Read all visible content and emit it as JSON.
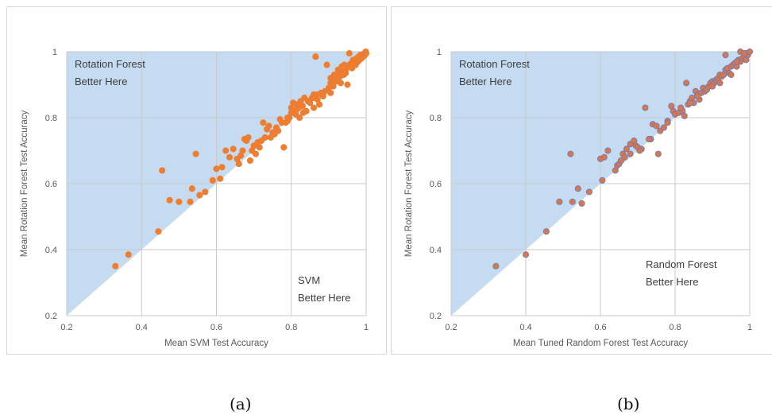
{
  "chart_data": [
    {
      "type": "scatter",
      "caption": "(a)",
      "xlabel": "Mean SVM  Test Accuracy",
      "ylabel": "Mean Rotation Forest Test Accuracy",
      "xlim": [
        0.2,
        1.0
      ],
      "ylim": [
        0.2,
        1.0
      ],
      "xticks": [
        "0.2",
        "0.4",
        "0.6",
        "0.8",
        "1"
      ],
      "yticks": [
        "0.2",
        "0.4",
        "0.6",
        "0.8",
        "1"
      ],
      "grid": true,
      "shaded_region": "above diagonal y = x",
      "colors": {
        "shade": "#c4dbf1",
        "point": "#ed7d31",
        "point_edge": "#ed7d31",
        "grid": "#c9c9c9"
      },
      "annotations": [
        {
          "lines": [
            "Rotation Forest",
            "Better Here"
          ],
          "region": "top-left"
        },
        {
          "lines": [
            "SVM",
            "Better Here"
          ],
          "region": "bottom-right"
        }
      ],
      "points": [
        [
          0.33,
          0.35
        ],
        [
          0.365,
          0.385
        ],
        [
          0.445,
          0.455
        ],
        [
          0.455,
          0.64
        ],
        [
          0.475,
          0.55
        ],
        [
          0.5,
          0.545
        ],
        [
          0.53,
          0.545
        ],
        [
          0.535,
          0.585
        ],
        [
          0.545,
          0.69
        ],
        [
          0.555,
          0.565
        ],
        [
          0.57,
          0.575
        ],
        [
          0.59,
          0.61
        ],
        [
          0.6,
          0.645
        ],
        [
          0.61,
          0.615
        ],
        [
          0.615,
          0.65
        ],
        [
          0.625,
          0.7
        ],
        [
          0.635,
          0.68
        ],
        [
          0.645,
          0.705
        ],
        [
          0.655,
          0.675
        ],
        [
          0.66,
          0.66
        ],
        [
          0.665,
          0.685
        ],
        [
          0.67,
          0.7
        ],
        [
          0.675,
          0.735
        ],
        [
          0.68,
          0.73
        ],
        [
          0.685,
          0.74
        ],
        [
          0.69,
          0.67
        ],
        [
          0.695,
          0.7
        ],
        [
          0.7,
          0.715
        ],
        [
          0.705,
          0.69
        ],
        [
          0.71,
          0.725
        ],
        [
          0.715,
          0.71
        ],
        [
          0.72,
          0.73
        ],
        [
          0.725,
          0.785
        ],
        [
          0.73,
          0.74
        ],
        [
          0.735,
          0.765
        ],
        [
          0.74,
          0.775
        ],
        [
          0.745,
          0.74
        ],
        [
          0.75,
          0.755
        ],
        [
          0.755,
          0.75
        ],
        [
          0.76,
          0.77
        ],
        [
          0.765,
          0.76
        ],
        [
          0.77,
          0.795
        ],
        [
          0.775,
          0.785
        ],
        [
          0.78,
          0.71
        ],
        [
          0.785,
          0.785
        ],
        [
          0.79,
          0.79
        ],
        [
          0.795,
          0.8
        ],
        [
          0.8,
          0.83
        ],
        [
          0.805,
          0.845
        ],
        [
          0.81,
          0.82
        ],
        [
          0.812,
          0.81
        ],
        [
          0.815,
          0.84
        ],
        [
          0.82,
          0.83
        ],
        [
          0.822,
          0.8
        ],
        [
          0.825,
          0.85
        ],
        [
          0.83,
          0.835
        ],
        [
          0.832,
          0.815
        ],
        [
          0.835,
          0.86
        ],
        [
          0.84,
          0.82
        ],
        [
          0.845,
          0.85
        ],
        [
          0.85,
          0.845
        ],
        [
          0.855,
          0.86
        ],
        [
          0.86,
          0.83
        ],
        [
          0.862,
          0.86
        ],
        [
          0.865,
          0.985
        ],
        [
          0.87,
          0.87
        ],
        [
          0.875,
          0.84
        ],
        [
          0.88,
          0.875
        ],
        [
          0.885,
          0.865
        ],
        [
          0.89,
          0.88
        ],
        [
          0.895,
          0.96
        ],
        [
          0.9,
          0.89
        ],
        [
          0.905,
          0.905
        ],
        [
          0.91,
          0.915
        ],
        [
          0.912,
          0.895
        ],
        [
          0.915,
          0.92
        ],
        [
          0.92,
          0.91
        ],
        [
          0.922,
          0.93
        ],
        [
          0.925,
          0.945
        ],
        [
          0.93,
          0.925
        ],
        [
          0.932,
          0.905
        ],
        [
          0.935,
          0.94
        ],
        [
          0.94,
          0.93
        ],
        [
          0.942,
          0.96
        ],
        [
          0.945,
          0.945
        ],
        [
          0.95,
          0.9
        ],
        [
          0.952,
          0.955
        ],
        [
          0.955,
          0.96
        ],
        [
          0.96,
          0.965
        ],
        [
          0.962,
          0.95
        ],
        [
          0.965,
          0.97
        ],
        [
          0.97,
          0.975
        ],
        [
          0.972,
          0.96
        ],
        [
          0.975,
          0.98
        ],
        [
          0.978,
          0.97
        ],
        [
          0.98,
          0.985
        ],
        [
          0.982,
          0.975
        ],
        [
          0.985,
          0.99
        ],
        [
          0.988,
          0.98
        ],
        [
          0.99,
          0.99
        ],
        [
          0.992,
          0.985
        ],
        [
          0.995,
          0.995
        ],
        [
          0.997,
          0.99
        ],
        [
          1.0,
          0.995
        ],
        [
          0.999,
          1.0
        ],
        [
          0.955,
          0.995
        ],
        [
          0.88,
          0.875
        ],
        [
          0.86,
          0.87
        ],
        [
          0.87,
          0.855
        ],
        [
          0.905,
          0.92
        ],
        [
          0.935,
          0.955
        ],
        [
          0.925,
          0.915
        ],
        [
          0.8,
          0.815
        ],
        [
          0.79,
          0.8
        ],
        [
          0.815,
          0.825
        ],
        [
          0.905,
          0.875
        ],
        [
          0.915,
          0.93
        ],
        [
          0.945,
          0.935
        ],
        [
          0.965,
          0.975
        ]
      ]
    },
    {
      "type": "scatter",
      "caption": "(b)",
      "xlabel": "Mean Tuned  Random Forest Test Accuracy",
      "ylabel": "Mean Rotation Forest Test Accuracy",
      "xlim": [
        0.2,
        1.0
      ],
      "ylim": [
        0.2,
        1.0
      ],
      "xticks": [
        "0.2",
        "0.4",
        "0.6",
        "0.8",
        "1"
      ],
      "yticks": [
        "0.2",
        "0.4",
        "0.6",
        "0.8",
        "1"
      ],
      "grid": true,
      "shaded_region": "above diagonal y = x",
      "colors": {
        "shade": "#c4dbf1",
        "point": "#d9764a",
        "point_edge": "#6f7bb8",
        "grid": "#c9c9c9"
      },
      "annotations": [
        {
          "lines": [
            "Rotation Forest",
            "Better Here"
          ],
          "region": "top-left"
        },
        {
          "lines": [
            "Random Forest",
            "Better Here"
          ],
          "region": "bottom-right"
        }
      ],
      "points": [
        [
          0.32,
          0.35
        ],
        [
          0.4,
          0.385
        ],
        [
          0.455,
          0.455
        ],
        [
          0.49,
          0.545
        ],
        [
          0.52,
          0.69
        ],
        [
          0.525,
          0.545
        ],
        [
          0.54,
          0.585
        ],
        [
          0.55,
          0.54
        ],
        [
          0.57,
          0.575
        ],
        [
          0.6,
          0.675
        ],
        [
          0.605,
          0.61
        ],
        [
          0.61,
          0.68
        ],
        [
          0.62,
          0.7
        ],
        [
          0.64,
          0.64
        ],
        [
          0.645,
          0.655
        ],
        [
          0.65,
          0.66
        ],
        [
          0.66,
          0.69
        ],
        [
          0.665,
          0.68
        ],
        [
          0.67,
          0.705
        ],
        [
          0.68,
          0.72
        ],
        [
          0.69,
          0.73
        ],
        [
          0.695,
          0.715
        ],
        [
          0.7,
          0.71
        ],
        [
          0.71,
          0.705
        ],
        [
          0.72,
          0.83
        ],
        [
          0.735,
          0.735
        ],
        [
          0.74,
          0.78
        ],
        [
          0.75,
          0.775
        ],
        [
          0.755,
          0.69
        ],
        [
          0.76,
          0.76
        ],
        [
          0.77,
          0.77
        ],
        [
          0.78,
          0.79
        ],
        [
          0.79,
          0.835
        ],
        [
          0.795,
          0.82
        ],
        [
          0.8,
          0.81
        ],
        [
          0.81,
          0.815
        ],
        [
          0.82,
          0.82
        ],
        [
          0.825,
          0.805
        ],
        [
          0.83,
          0.905
        ],
        [
          0.835,
          0.84
        ],
        [
          0.84,
          0.85
        ],
        [
          0.845,
          0.86
        ],
        [
          0.85,
          0.845
        ],
        [
          0.855,
          0.88
        ],
        [
          0.86,
          0.87
        ],
        [
          0.865,
          0.855
        ],
        [
          0.87,
          0.875
        ],
        [
          0.875,
          0.89
        ],
        [
          0.88,
          0.88
        ],
        [
          0.885,
          0.885
        ],
        [
          0.89,
          0.895
        ],
        [
          0.895,
          0.905
        ],
        [
          0.9,
          0.91
        ],
        [
          0.905,
          0.905
        ],
        [
          0.91,
          0.915
        ],
        [
          0.915,
          0.92
        ],
        [
          0.92,
          0.93
        ],
        [
          0.925,
          0.925
        ],
        [
          0.93,
          0.93
        ],
        [
          0.935,
          0.945
        ],
        [
          0.94,
          0.95
        ],
        [
          0.945,
          0.935
        ],
        [
          0.95,
          0.955
        ],
        [
          0.955,
          0.96
        ],
        [
          0.96,
          0.965
        ],
        [
          0.965,
          0.955
        ],
        [
          0.97,
          0.975
        ],
        [
          0.975,
          0.97
        ],
        [
          0.98,
          0.98
        ],
        [
          0.985,
          0.985
        ],
        [
          0.99,
          0.995
        ],
        [
          0.995,
          0.99
        ],
        [
          1.0,
          1.0
        ],
        [
          0.935,
          0.99
        ],
        [
          0.975,
          1.0
        ],
        [
          0.985,
          0.995
        ],
        [
          0.95,
          0.93
        ],
        [
          0.92,
          0.905
        ],
        [
          0.9,
          0.895
        ],
        [
          0.86,
          0.865
        ],
        [
          0.84,
          0.845
        ],
        [
          0.815,
          0.83
        ],
        [
          0.78,
          0.785
        ],
        [
          0.73,
          0.735
        ],
        [
          0.705,
          0.7
        ],
        [
          0.68,
          0.69
        ],
        [
          0.655,
          0.67
        ],
        [
          0.965,
          0.97
        ],
        [
          0.99,
          0.975
        ]
      ]
    }
  ]
}
